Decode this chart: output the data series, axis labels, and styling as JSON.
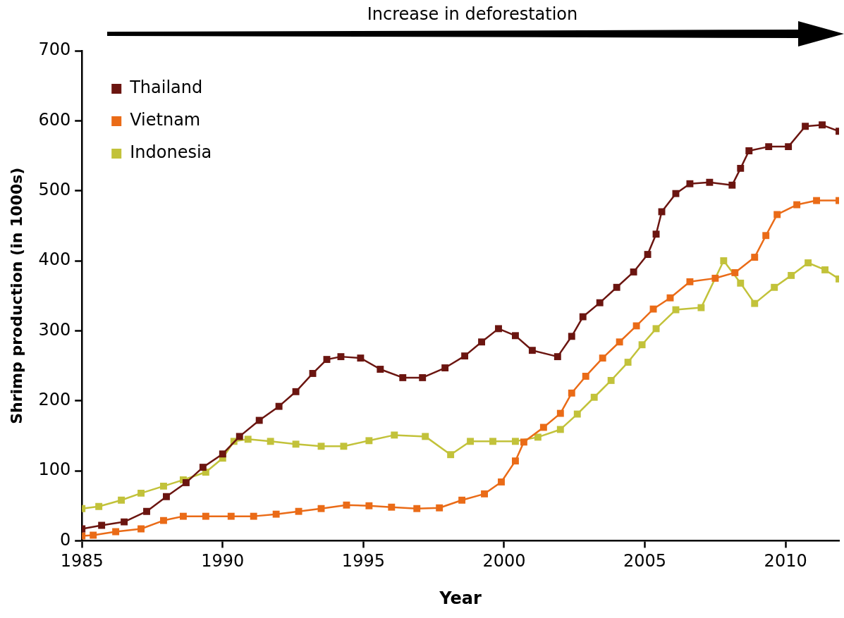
{
  "chart_data": {
    "type": "line",
    "xlabel": "Year",
    "ylabel": "Shrimp production (in 1000s)",
    "annotations": [
      "Increase in deforestation"
    ],
    "xlim": [
      1985,
      2011.9
    ],
    "xticks": [
      1985,
      1990,
      1995,
      2000,
      2005,
      2010
    ],
    "ylim": [
      0,
      700
    ],
    "yticks": [
      0,
      100,
      200,
      300,
      400,
      500,
      600,
      700
    ],
    "grid": false,
    "legend": "top left",
    "marker": "square",
    "line_style": "solid",
    "series": [
      {
        "name": "Thailand",
        "color": "#6b1510",
        "x": [
          1985,
          1985.7,
          1986.5,
          1987.3,
          1988.0,
          1988.7,
          1989.3,
          1990.0,
          1990.6,
          1991.3,
          1992.0,
          1992.6,
          1993.2,
          1993.7,
          1994.2,
          1994.9,
          1995.6,
          1996.4,
          1997.1,
          1997.9,
          1998.6,
          1999.2,
          1999.8,
          2000.4,
          2001.0,
          2001.9,
          2002.4,
          2002.8,
          2003.4,
          2004.0,
          2004.6,
          2005.1,
          2005.4,
          2005.6,
          2006.1,
          2006.6,
          2007.3,
          2008.1,
          2008.4,
          2008.7,
          2009.4,
          2010.1,
          2010.7,
          2011.3,
          2011.9
        ],
        "values": [
          17,
          22,
          27,
          42,
          63,
          83,
          105,
          124,
          149,
          172,
          192,
          213,
          239,
          259,
          263,
          261,
          245,
          233,
          233,
          247,
          264,
          284,
          303,
          293,
          272,
          263,
          292,
          320,
          340,
          362,
          384,
          409,
          438,
          470,
          496,
          510,
          512,
          508,
          532,
          557,
          563,
          563,
          592,
          594,
          585
        ]
      },
      {
        "name": "Vietnam",
        "color": "#ea6b17",
        "x": [
          1985,
          1985.4,
          1986.2,
          1987.1,
          1987.9,
          1988.6,
          1989.4,
          1990.3,
          1991.1,
          1991.9,
          1992.7,
          1993.5,
          1994.4,
          1995.2,
          1996.0,
          1996.9,
          1997.7,
          1998.5,
          1999.3,
          1999.9,
          2000.4,
          2000.7,
          2001.4,
          2002.0,
          2002.4,
          2002.9,
          2003.5,
          2004.1,
          2004.7,
          2005.3,
          2005.9,
          2006.6,
          2007.5,
          2008.2,
          2008.9,
          2009.3,
          2009.7,
          2010.4,
          2011.1,
          2011.9
        ],
        "values": [
          7,
          8,
          13,
          17,
          29,
          35,
          35,
          35,
          35,
          38,
          42,
          46,
          51,
          50,
          48,
          46,
          47,
          58,
          67,
          84,
          114,
          141,
          162,
          182,
          211,
          235,
          261,
          284,
          307,
          331,
          347,
          370,
          375,
          383,
          405,
          436,
          466,
          480,
          486,
          486
        ]
      },
      {
        "name": "Indonesia",
        "color": "#c2c23a",
        "x": [
          1985,
          1985.6,
          1986.4,
          1987.1,
          1987.9,
          1988.6,
          1989.4,
          1990.0,
          1990.4,
          1990.9,
          1991.7,
          1992.6,
          1993.5,
          1994.3,
          1995.2,
          1996.1,
          1997.2,
          1998.1,
          1998.8,
          1999.6,
          2000.4,
          2001.2,
          2002.0,
          2002.6,
          2003.2,
          2003.8,
          2004.4,
          2004.9,
          2005.4,
          2006.1,
          2007.0,
          2007.8,
          2008.4,
          2008.9,
          2009.6,
          2010.2,
          2010.8,
          2011.4,
          2011.9
        ],
        "values": [
          46,
          49,
          58,
          68,
          78,
          87,
          98,
          118,
          142,
          145,
          142,
          138,
          135,
          135,
          143,
          151,
          149,
          123,
          142,
          142,
          142,
          148,
          159,
          181,
          205,
          229,
          255,
          280,
          303,
          330,
          333,
          400,
          368,
          339,
          362,
          379,
          397,
          387,
          374
        ]
      }
    ]
  }
}
